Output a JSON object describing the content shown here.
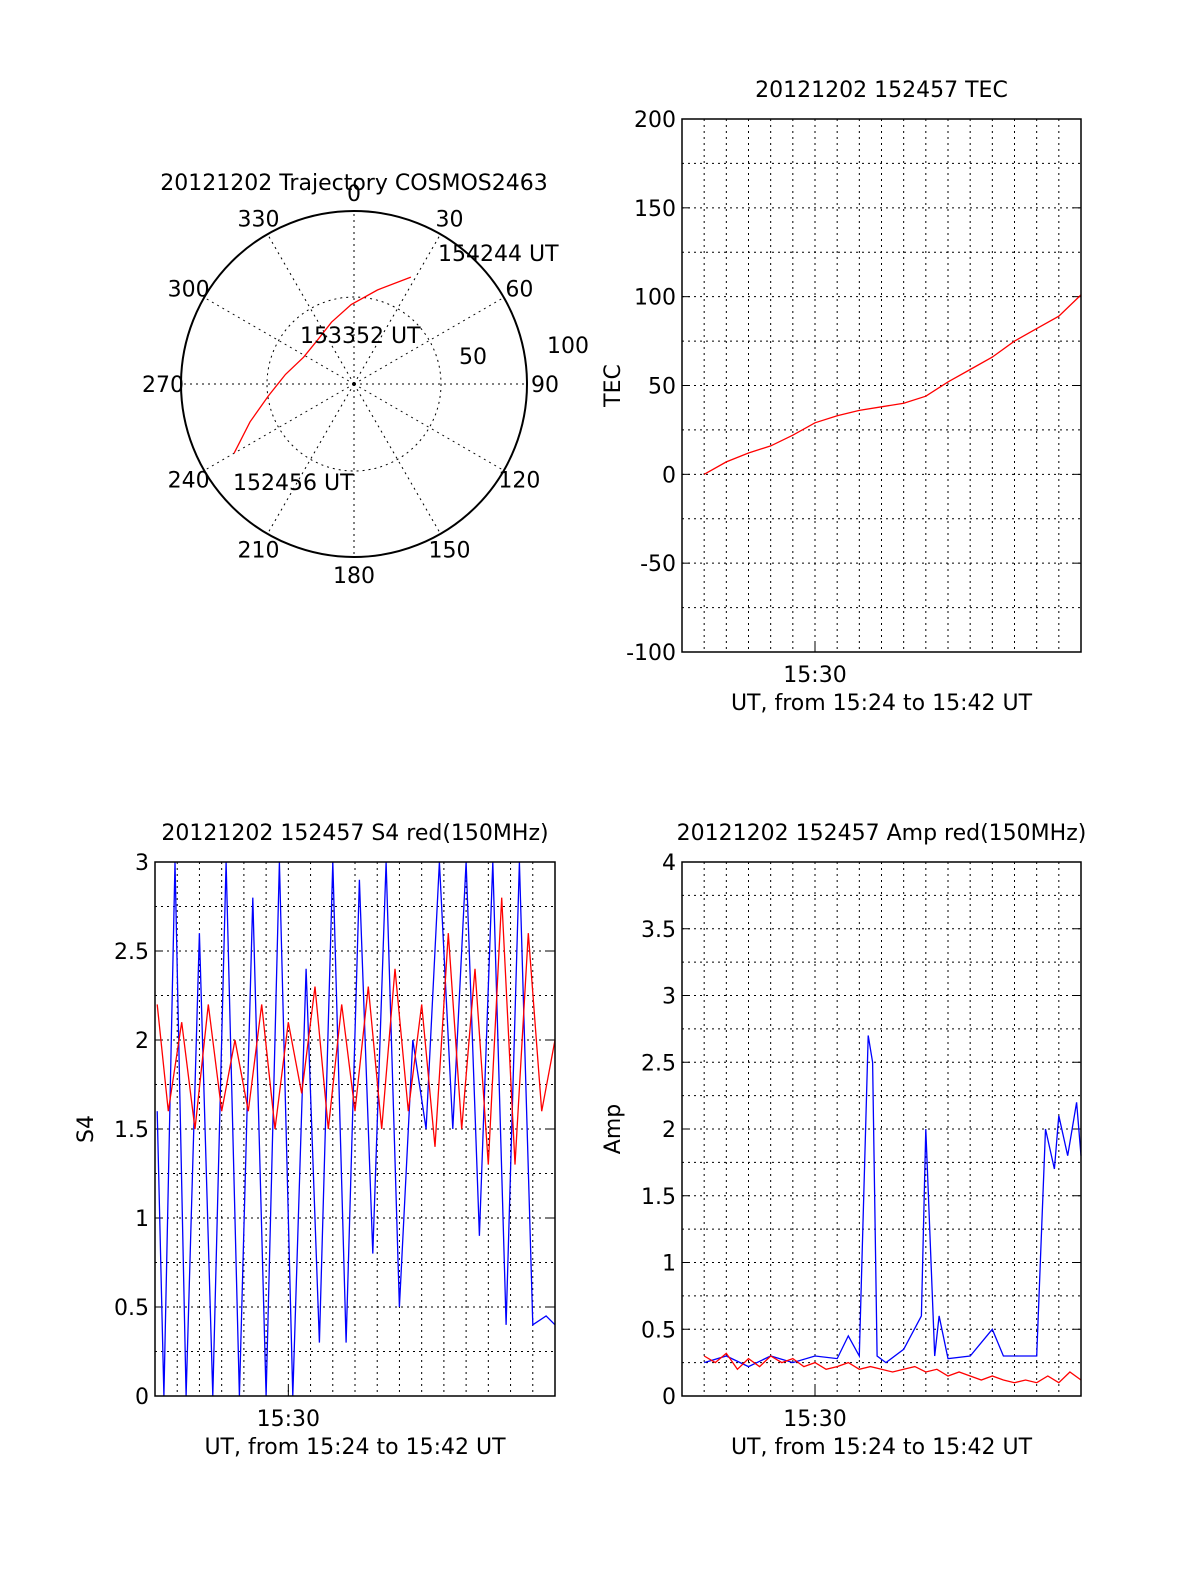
{
  "colors": {
    "red": "#ff0000",
    "blue": "#0000ff",
    "black": "#000000"
  },
  "chart_data": [
    {
      "type": "polar",
      "title": "20121202 Trajectory COSMOS2463",
      "azimuth_labels": [
        "0",
        "30",
        "60",
        "90",
        "120",
        "150",
        "180",
        "210",
        "240",
        "270",
        "300",
        "330"
      ],
      "azimuth_values": [
        0,
        30,
        60,
        90,
        120,
        150,
        180,
        210,
        240,
        270,
        300,
        330
      ],
      "radial_labels": [
        "50",
        "100"
      ],
      "radial_values": [
        50,
        100
      ],
      "zenith_max": 100,
      "trajectory": {
        "color": "red",
        "points": [
          {
            "az": 240,
            "zen": 80
          },
          {
            "az": 250,
            "zen": 64
          },
          {
            "az": 262,
            "zen": 50
          },
          {
            "az": 278,
            "zen": 40
          },
          {
            "az": 298,
            "zen": 33
          },
          {
            "az": 320,
            "zen": 33
          },
          {
            "az": 340,
            "zen": 38
          },
          {
            "az": 358,
            "zen": 46
          },
          {
            "az": 14,
            "zen": 56
          },
          {
            "az": 28,
            "zen": 70
          }
        ]
      },
      "annotations": [
        "154244 UT",
        "153352 UT",
        "152456 UT"
      ]
    },
    {
      "type": "line",
      "title": "20121202 152457 TEC",
      "ylabel": "TEC",
      "xlabel": "UT, from 15:24 to 15:42 UT",
      "xlim": [
        0,
        18
      ],
      "ylim": [
        -100,
        200
      ],
      "yticks": [
        "200",
        "150",
        "100",
        "50",
        "0",
        "-50",
        "-100"
      ],
      "ytick_values": [
        200,
        150,
        100,
        50,
        0,
        -50,
        -100
      ],
      "xticks": [
        "15:30"
      ],
      "xtick_values": [
        6
      ],
      "series": [
        {
          "color": "red",
          "x": [
            1.0,
            2.0,
            3.0,
            4.0,
            5.0,
            6.0,
            7.0,
            8.0,
            9.0,
            10.0,
            11.0,
            12.0,
            13.0,
            14.0,
            15.0,
            16.0,
            17.0,
            18.0
          ],
          "y": [
            0,
            7,
            12,
            16,
            22,
            29,
            33,
            36,
            38,
            40,
            44,
            52,
            59,
            66,
            75,
            82,
            89,
            101
          ]
        }
      ]
    },
    {
      "type": "line",
      "title": "20121202 152457 S4 red(150MHz)",
      "ylabel": "S4",
      "xlabel": "UT, from 15:24 to 15:42 UT",
      "xlim": [
        0,
        18
      ],
      "ylim": [
        0,
        3
      ],
      "yticks": [
        "3",
        "2.5",
        "2",
        "1.5",
        "1",
        "0.5",
        "0"
      ],
      "ytick_values": [
        3,
        2.5,
        2,
        1.5,
        1,
        0.5,
        0
      ],
      "xticks": [
        "15:30"
      ],
      "xtick_values": [
        6
      ],
      "series": [
        {
          "color": "blue",
          "x": [
            0.1,
            0.4,
            0.9,
            1.4,
            2.0,
            2.6,
            3.2,
            3.8,
            4.4,
            5.0,
            5.6,
            6.2,
            6.8,
            7.4,
            8.0,
            8.6,
            9.2,
            9.8,
            10.4,
            11.0,
            11.6,
            12.2,
            12.8,
            13.4,
            14.0,
            14.6,
            15.2,
            15.8,
            16.4,
            17.0,
            17.6,
            18.0
          ],
          "y": [
            1.6,
            0,
            3.0,
            0,
            2.6,
            0,
            3.0,
            0,
            2.8,
            0,
            3.0,
            0,
            2.4,
            0.3,
            3.0,
            0.3,
            2.9,
            0.8,
            3.0,
            0.5,
            2.0,
            1.5,
            3.0,
            1.5,
            3.0,
            0.9,
            3.0,
            0.4,
            3.0,
            0.4,
            0.45,
            0.4
          ]
        },
        {
          "color": "red",
          "x": [
            0.1,
            0.6,
            1.2,
            1.8,
            2.4,
            3.0,
            3.6,
            4.2,
            4.8,
            5.4,
            6.0,
            6.6,
            7.2,
            7.8,
            8.4,
            9.0,
            9.6,
            10.2,
            10.8,
            11.4,
            12.0,
            12.6,
            13.2,
            13.8,
            14.4,
            15.0,
            15.6,
            16.2,
            16.8,
            17.4,
            18.0
          ],
          "y": [
            2.2,
            1.6,
            2.1,
            1.5,
            2.2,
            1.6,
            2.0,
            1.6,
            2.2,
            1.5,
            2.1,
            1.7,
            2.3,
            1.5,
            2.2,
            1.6,
            2.3,
            1.5,
            2.4,
            1.6,
            2.2,
            1.4,
            2.6,
            1.5,
            2.4,
            1.3,
            2.8,
            1.3,
            2.6,
            1.6,
            2.0
          ]
        }
      ]
    },
    {
      "type": "line",
      "title": "20121202 152457 Amp red(150MHz)",
      "ylabel": "Amp",
      "xlabel": "UT, from 15:24 to 15:42 UT",
      "xlim": [
        0,
        18
      ],
      "ylim": [
        0,
        4
      ],
      "yticks": [
        "4",
        "3.5",
        "3",
        "2.5",
        "2",
        "1.5",
        "1",
        "0.5",
        "0"
      ],
      "ytick_values": [
        4,
        3.5,
        3,
        2.5,
        2,
        1.5,
        1,
        0.5,
        0
      ],
      "xticks": [
        "15:30"
      ],
      "xtick_values": [
        6
      ],
      "series": [
        {
          "color": "blue",
          "x": [
            1.0,
            2.0,
            3.0,
            4.0,
            5.0,
            6.0,
            7.0,
            7.5,
            8.0,
            8.4,
            8.6,
            8.8,
            9.2,
            10.0,
            10.8,
            11.0,
            11.4,
            11.6,
            12.0,
            13.0,
            14.0,
            14.5,
            15.0,
            16.0,
            16.4,
            16.8,
            17.0,
            17.4,
            17.8,
            18.0
          ],
          "y": [
            0.25,
            0.3,
            0.22,
            0.3,
            0.25,
            0.3,
            0.28,
            0.45,
            0.3,
            2.7,
            2.5,
            0.3,
            0.25,
            0.35,
            0.6,
            2.0,
            0.3,
            0.6,
            0.28,
            0.3,
            0.5,
            0.3,
            0.3,
            0.3,
            2.0,
            1.7,
            2.1,
            1.8,
            2.2,
            1.8
          ]
        },
        {
          "color": "red",
          "x": [
            1.0,
            1.5,
            2.0,
            2.5,
            3.0,
            3.5,
            4.0,
            4.5,
            5.0,
            5.5,
            6.0,
            6.5,
            7.0,
            7.5,
            8.0,
            8.5,
            9.0,
            9.5,
            10.0,
            10.5,
            11.0,
            11.5,
            12.0,
            12.5,
            13.0,
            13.5,
            14.0,
            14.5,
            15.0,
            15.5,
            16.0,
            16.5,
            17.0,
            17.5,
            18.0
          ],
          "y": [
            0.3,
            0.25,
            0.32,
            0.2,
            0.28,
            0.22,
            0.3,
            0.25,
            0.28,
            0.22,
            0.25,
            0.2,
            0.22,
            0.25,
            0.2,
            0.22,
            0.2,
            0.18,
            0.2,
            0.22,
            0.18,
            0.2,
            0.15,
            0.18,
            0.15,
            0.12,
            0.15,
            0.12,
            0.1,
            0.12,
            0.1,
            0.15,
            0.1,
            0.18,
            0.12
          ]
        }
      ]
    }
  ]
}
